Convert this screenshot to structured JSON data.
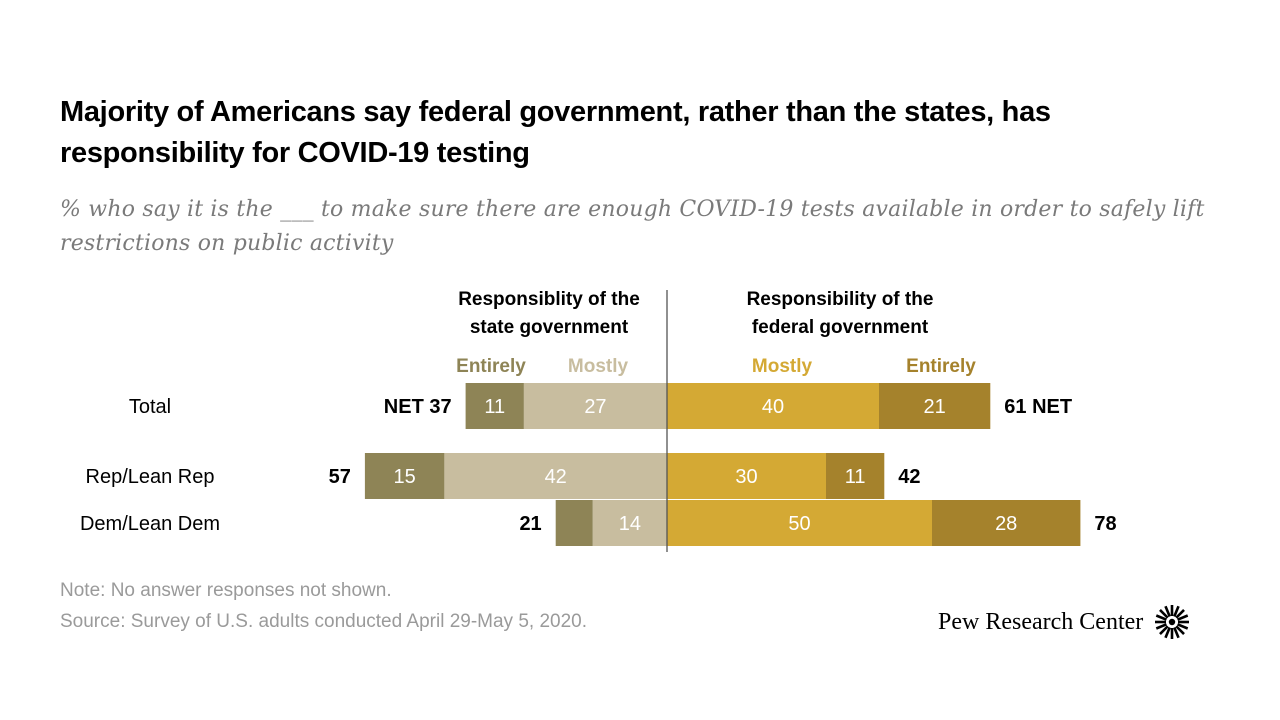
{
  "title": "Majority of Americans say federal government, rather than the states, has responsibility for COVID-19 testing",
  "subtitle": "% who say it is the ___ to make sure there are enough COVID-19 tests available in order to safely lift restrictions on public activity",
  "note": "Note: No answer responses not shown.",
  "source": "Source: Survey of U.S. adults conducted April 29-May 5, 2020.",
  "logo_text": "Pew Research Center",
  "colors": {
    "state_entirely": "#8e8456",
    "state_mostly": "#c8bd9f",
    "federal_mostly": "#d4a934",
    "federal_entirely": "#a5822c",
    "divider": "#555555"
  },
  "chart_data": {
    "type": "bar",
    "orientation": "horizontal-diverging",
    "state_header": [
      "Responsiblity of the",
      "state government"
    ],
    "federal_header": [
      "Responsibility of the",
      "federal government"
    ],
    "legend": {
      "state_entirely": "Entirely",
      "state_mostly": "Mostly",
      "federal_mostly": "Mostly",
      "federal_entirely": "Entirely"
    },
    "net_label": "NET",
    "categories": [
      "Total",
      "Rep/Lean Rep",
      "Dem/Lean Dem"
    ],
    "series": [
      {
        "name": "State - Entirely",
        "values": [
          11,
          15,
          7
        ]
      },
      {
        "name": "State - Mostly",
        "values": [
          27,
          42,
          14
        ]
      },
      {
        "name": "Federal - Mostly",
        "values": [
          40,
          30,
          50
        ]
      },
      {
        "name": "Federal - Entirely",
        "values": [
          21,
          11,
          28
        ]
      }
    ],
    "state_entirely_labels": [
      "11",
      "15",
      ""
    ],
    "state_net": [
      37,
      57,
      21
    ],
    "federal_net": [
      61,
      42,
      78
    ]
  }
}
